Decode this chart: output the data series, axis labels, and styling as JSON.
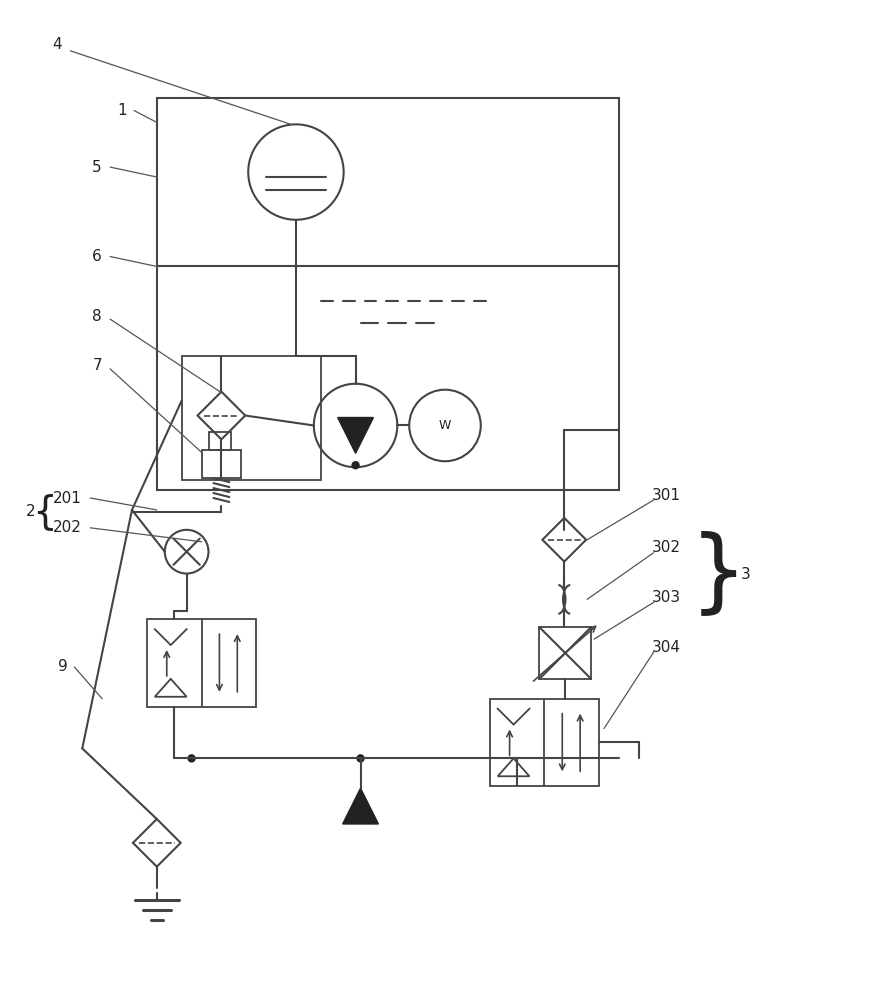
{
  "bg_color": "#ffffff",
  "line_color": "#444444",
  "text_color": "#222222",
  "fig_width": 8.91,
  "fig_height": 10.0
}
